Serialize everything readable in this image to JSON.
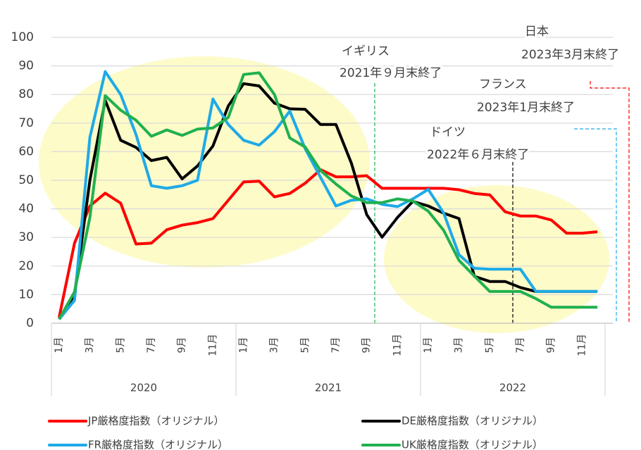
{
  "chart_data": {
    "type": "line",
    "categories": [
      "1月",
      null,
      "3月",
      null,
      "5月",
      null,
      "7月",
      null,
      "9月",
      null,
      "11月",
      null,
      "1月",
      null,
      "3月",
      null,
      "5月",
      null,
      "7月",
      null,
      "9月",
      null,
      "11月",
      null,
      "1月",
      null,
      "3月",
      null,
      "5月",
      null,
      "7月",
      null,
      "9月",
      null,
      "11月",
      null
    ],
    "year_groups": [
      "2020",
      "2021",
      "2022"
    ],
    "ylim": [
      0,
      100
    ],
    "yticks": [
      0,
      10,
      20,
      30,
      40,
      50,
      60,
      70,
      80,
      90,
      100
    ],
    "grid": true,
    "series": [
      {
        "name": "JP厳格度指数（オリジナル）",
        "color": "#ff0000",
        "values": [
          2,
          28,
          41,
          45.5,
          42,
          27.7,
          28,
          32.7,
          34.3,
          35.2,
          36.6,
          43,
          49.4,
          49.7,
          44.2,
          45.4,
          49,
          53.7,
          51.2,
          51.2,
          51.6,
          47.2,
          47.2,
          47.2,
          47.2,
          47.2,
          46.7,
          45.4,
          44.9,
          39,
          37.5,
          37.5,
          36.1,
          31.5,
          31.5,
          32
        ]
      },
      {
        "name": "DE厳格度指数（オリジナル）",
        "color": "#000000",
        "values": [
          1.4,
          10,
          50,
          78,
          64,
          61.5,
          56.9,
          58,
          50.5,
          55,
          62,
          76,
          83.8,
          83,
          77,
          75,
          74.8,
          69.5,
          69.5,
          56,
          38,
          30.1,
          37,
          42.6,
          41,
          38.5,
          36.6,
          16.4,
          14.6,
          14.6,
          12.5,
          11.1,
          11.1,
          11.1,
          11.1,
          11.1
        ]
      },
      {
        "name": "FR厳格度指数（オリジナル）",
        "color": "#1eaae7",
        "values": [
          1.4,
          8,
          65,
          88,
          80,
          66,
          48.1,
          47.2,
          48.1,
          50,
          78.4,
          69.5,
          64,
          62.3,
          67,
          74.2,
          61,
          51,
          41,
          43,
          43.5,
          41.6,
          40.8,
          43.5,
          46.8,
          38.6,
          24,
          19.2,
          18.9,
          18.9,
          18.9,
          11.1,
          11.1,
          11.1,
          11.1,
          11.1
        ]
      },
      {
        "name": "UK厳格度指数（オリジナル）",
        "color": "#20b050",
        "values": [
          1.4,
          11,
          37,
          79.6,
          74.5,
          71,
          65.4,
          67.6,
          65.7,
          67.9,
          68.3,
          72,
          87,
          87.6,
          80,
          64.8,
          61.6,
          53.4,
          48.7,
          44.5,
          42.2,
          42.2,
          43.5,
          42.7,
          39.2,
          32.5,
          22,
          16.5,
          11.1,
          11.1,
          11.1,
          8.6,
          5.6,
          5.6,
          5.6,
          5.6
        ]
      }
    ],
    "annotations": [
      {
        "lines": [
          "イギリス",
          "2021年９月末終了"
        ],
        "color": "#20b050"
      },
      {
        "lines": [
          "ドイツ",
          "2022年６月末終了"
        ],
        "color": "#000000"
      },
      {
        "lines": [
          "フランス",
          "2023年1月末終了"
        ],
        "color": "#1eaae7"
      },
      {
        "lines": [
          "日本",
          "2023年3月末終了"
        ],
        "color": "#ff0000"
      }
    ]
  }
}
